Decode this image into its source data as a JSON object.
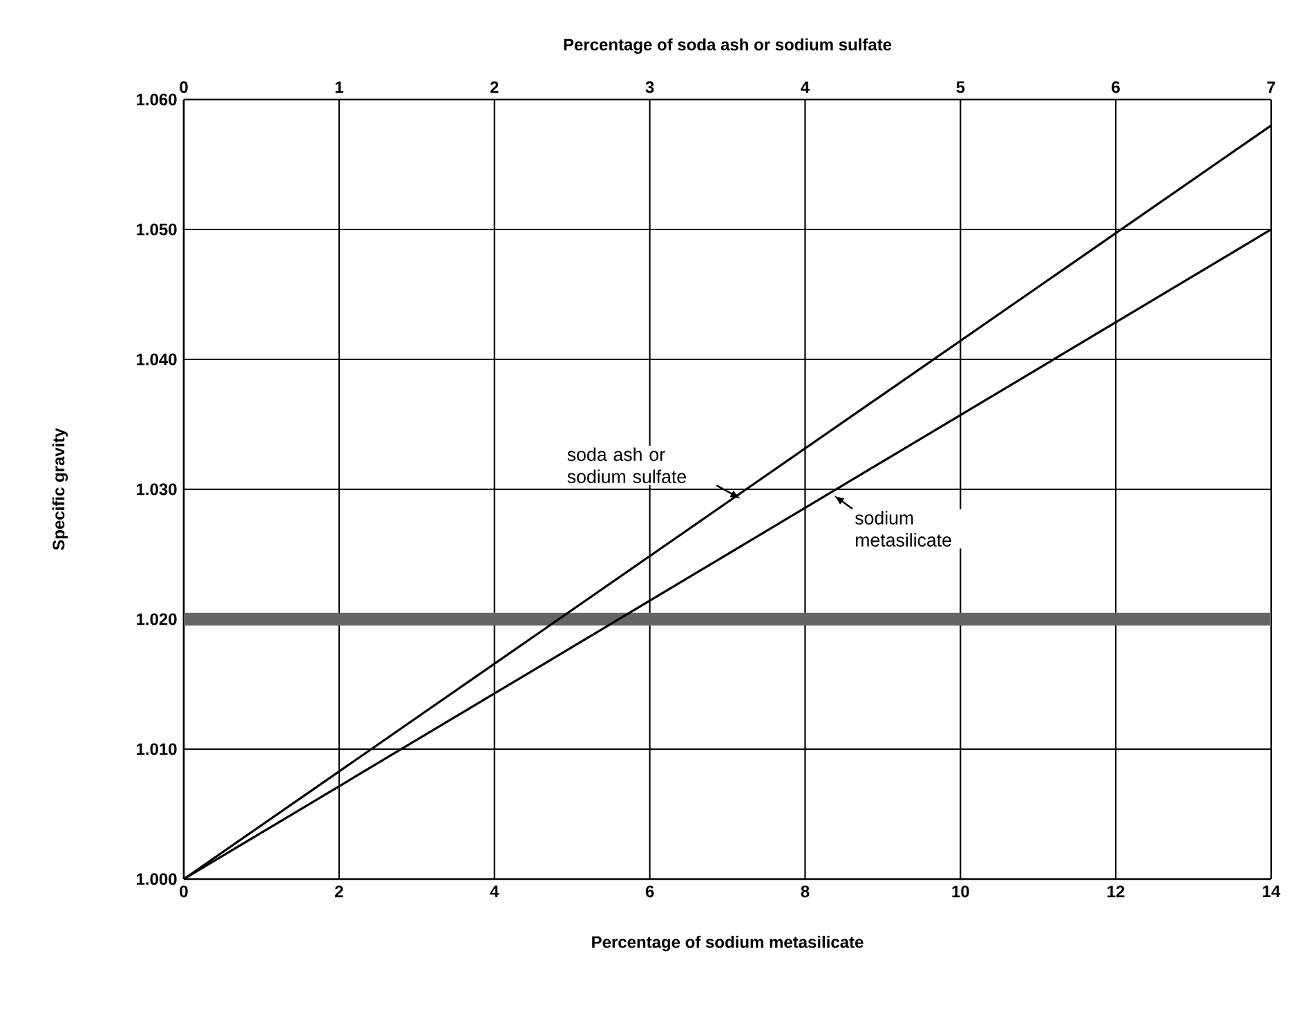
{
  "chart_data": {
    "type": "line",
    "xlabel": "Percentage of sodium metasilicate",
    "x2label": "Percentage of soda ash or sodium sulfate",
    "ylabel": "Specific gravity",
    "xlim": [
      0,
      14
    ],
    "xticks": [
      0,
      2,
      4,
      6,
      8,
      10,
      12,
      14
    ],
    "x2lim": [
      0,
      7
    ],
    "x2ticks": [
      0,
      1,
      2,
      3,
      4,
      5,
      6,
      7
    ],
    "ylim": [
      1.0,
      1.06
    ],
    "yticks": [
      {
        "value": 1.0,
        "label": "1.000"
      },
      {
        "value": 1.01,
        "label": "1.010"
      },
      {
        "value": 1.02,
        "label": "1.020"
      },
      {
        "value": 1.03,
        "label": "1.030"
      },
      {
        "value": 1.04,
        "label": "1.040"
      },
      {
        "value": 1.05,
        "label": "1.050"
      },
      {
        "value": 1.06,
        "label": "1.060"
      }
    ],
    "grid": true,
    "series": [
      {
        "name": "soda ash or sodium sulfate",
        "color": "#000000",
        "axis": "x2",
        "x": [
          0,
          7
        ],
        "values": [
          1.0,
          1.058
        ]
      },
      {
        "name": "sodium metasilicate",
        "color": "#000000",
        "x": [
          0,
          14
        ],
        "values": [
          1.0,
          1.05
        ]
      }
    ],
    "ref_lines": [
      {
        "axis": "y",
        "value": 1.02,
        "color": "#666666"
      }
    ]
  }
}
